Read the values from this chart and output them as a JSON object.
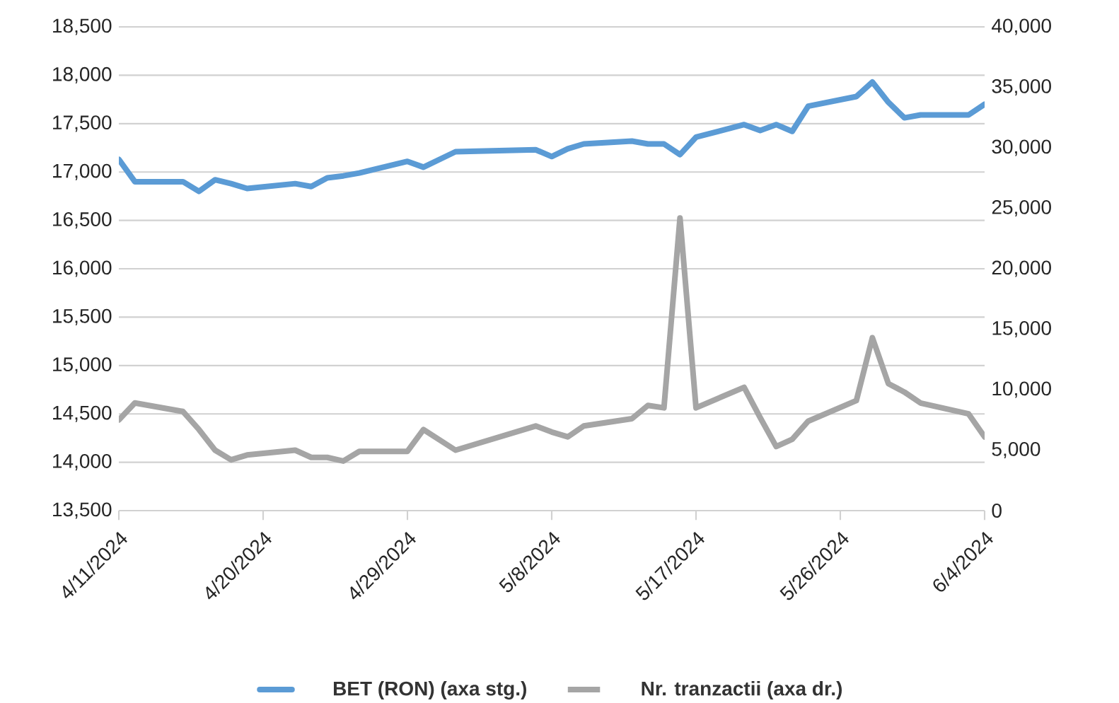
{
  "chart_data": {
    "type": "line",
    "x": [
      "2024-04-11",
      "2024-04-12",
      "2024-04-15",
      "2024-04-16",
      "2024-04-17",
      "2024-04-18",
      "2024-04-19",
      "2024-04-22",
      "2024-04-23",
      "2024-04-24",
      "2024-04-25",
      "2024-04-26",
      "2024-04-29",
      "2024-04-30",
      "2024-05-02",
      "2024-05-07",
      "2024-05-08",
      "2024-05-09",
      "2024-05-10",
      "2024-05-13",
      "2024-05-14",
      "2024-05-15",
      "2024-05-16",
      "2024-05-17",
      "2024-05-20",
      "2024-05-21",
      "2024-05-22",
      "2024-05-23",
      "2024-05-24",
      "2024-05-27",
      "2024-05-28",
      "2024-05-29",
      "2024-05-30",
      "2024-05-31",
      "2024-06-03",
      "2024-06-04"
    ],
    "series": [
      {
        "name": "BET (RON) (axa stg.)",
        "color": "#5b9bd5",
        "values": [
          17130,
          16900,
          16900,
          16800,
          16920,
          16880,
          16830,
          16880,
          16850,
          16940,
          16960,
          16990,
          17110,
          17050,
          17210,
          17230,
          17160,
          17240,
          17290,
          17320,
          17290,
          17290,
          17180,
          17360,
          17490,
          17430,
          17490,
          17420,
          17680,
          17780,
          17930,
          17720,
          17560,
          17590,
          17590,
          17700
        ]
      },
      {
        "name": "Nr. tranzactii (axa dr.)",
        "color": "#a5a5a5",
        "axis": "y2",
        "values": [
          7500,
          8900,
          8200,
          6700,
          5000,
          4200,
          4600,
          5000,
          4400,
          4400,
          4100,
          4900,
          4900,
          6700,
          5000,
          7000,
          6500,
          6100,
          7000,
          7600,
          8700,
          8500,
          24200,
          8500,
          10200,
          7700,
          5300,
          5900,
          7400,
          9100,
          14300,
          10500,
          9800,
          8900,
          8000,
          6100
        ]
      }
    ],
    "xlim": [
      "2024-04-11",
      "2024-06-04"
    ],
    "xticks": [
      {
        "value": "2024-04-11",
        "label": "4/11/2024"
      },
      {
        "value": "2024-04-20",
        "label": "4/20/2024"
      },
      {
        "value": "2024-04-29",
        "label": "4/29/2024"
      },
      {
        "value": "2024-05-08",
        "label": "5/8/2024"
      },
      {
        "value": "2024-05-17",
        "label": "5/17/2024"
      },
      {
        "value": "2024-05-26",
        "label": "5/26/2024"
      },
      {
        "value": "2024-06-04",
        "label": "6/4/2024"
      }
    ],
    "ylim": [
      13500,
      18500
    ],
    "yticks": [
      {
        "value": 13500,
        "label": "13,500"
      },
      {
        "value": 14000,
        "label": "14,000"
      },
      {
        "value": 14500,
        "label": "14,500"
      },
      {
        "value": 15000,
        "label": "15,000"
      },
      {
        "value": 15500,
        "label": "15,500"
      },
      {
        "value": 16000,
        "label": "16,000"
      },
      {
        "value": 16500,
        "label": "16,500"
      },
      {
        "value": 17000,
        "label": "17,000"
      },
      {
        "value": 17500,
        "label": "17,500"
      },
      {
        "value": 18000,
        "label": "18,000"
      },
      {
        "value": 18500,
        "label": "18,500"
      }
    ],
    "y2lim": [
      0,
      40000
    ],
    "y2ticks": [
      0,
      {
        "value": 5000,
        "label": "5,000"
      },
      {
        "value": 10000,
        "label": "10,000"
      },
      {
        "value": 15000,
        "label": "15,000"
      },
      {
        "value": 20000,
        "label": "20,000"
      },
      {
        "value": 25000,
        "label": "25,000"
      },
      {
        "value": 30000,
        "label": "30,000"
      },
      {
        "value": 35000,
        "label": "35,000"
      },
      {
        "value": 40000,
        "label": "40,000"
      }
    ],
    "grid": "y",
    "legend": "bottom",
    "line_style": "solid"
  }
}
